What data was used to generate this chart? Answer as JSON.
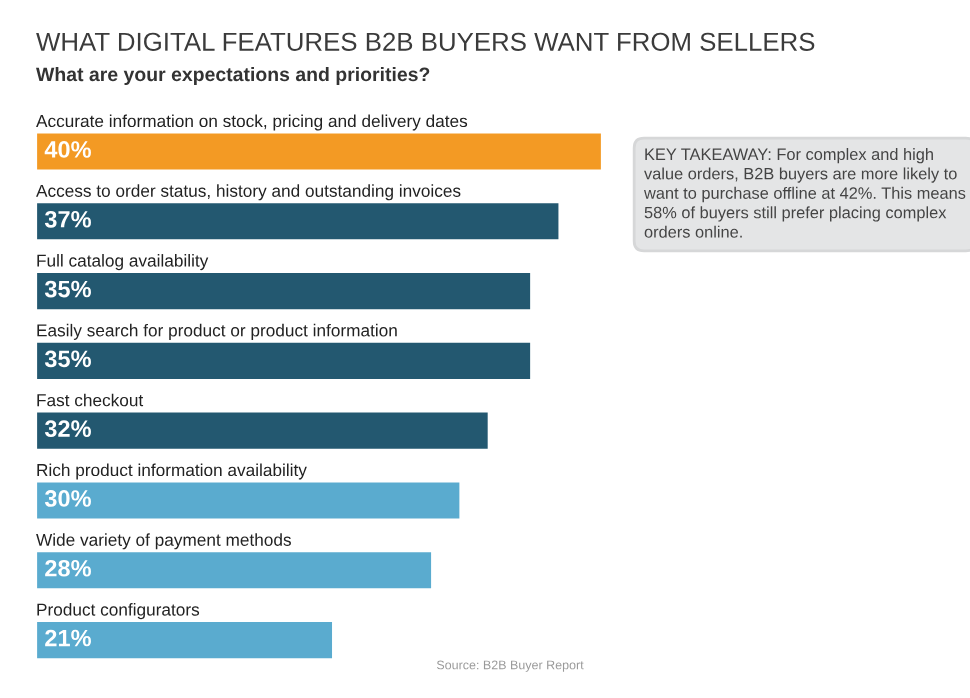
{
  "chart_data": {
    "type": "bar",
    "orientation": "horizontal",
    "title": "WHAT DIGITAL FEATURES B2B BUYERS WANT FROM SELLERS",
    "subtitle": "What are your expectations and priorities?",
    "categories": [
      "Accurate information on stock, pricing and delivery dates",
      "Access to order status, history and outstanding invoices",
      "Full catalog availability",
      "Easily search for product or product information",
      "Fast checkout",
      "Rich product information availability",
      "Wide variety of payment methods",
      "Product configurators"
    ],
    "values": [
      40,
      37,
      35,
      35,
      32,
      30,
      28,
      21
    ],
    "value_labels": [
      "40%",
      "37%",
      "35%",
      "35%",
      "32%",
      "30%",
      "28%",
      "21%"
    ],
    "colors": [
      "#f39a24",
      "#235870",
      "#235870",
      "#235870",
      "#235870",
      "#5aabcf",
      "#5aabcf",
      "#5aabcf"
    ],
    "annotations": [
      "KEY TAKEAWAY: For complex and high value orders, B2B buyers are more likely to want to purchase offline at 42%. This means 58% of buyers still prefer placing complex orders online.",
      "Source: B2B Buyer Report"
    ]
  }
}
